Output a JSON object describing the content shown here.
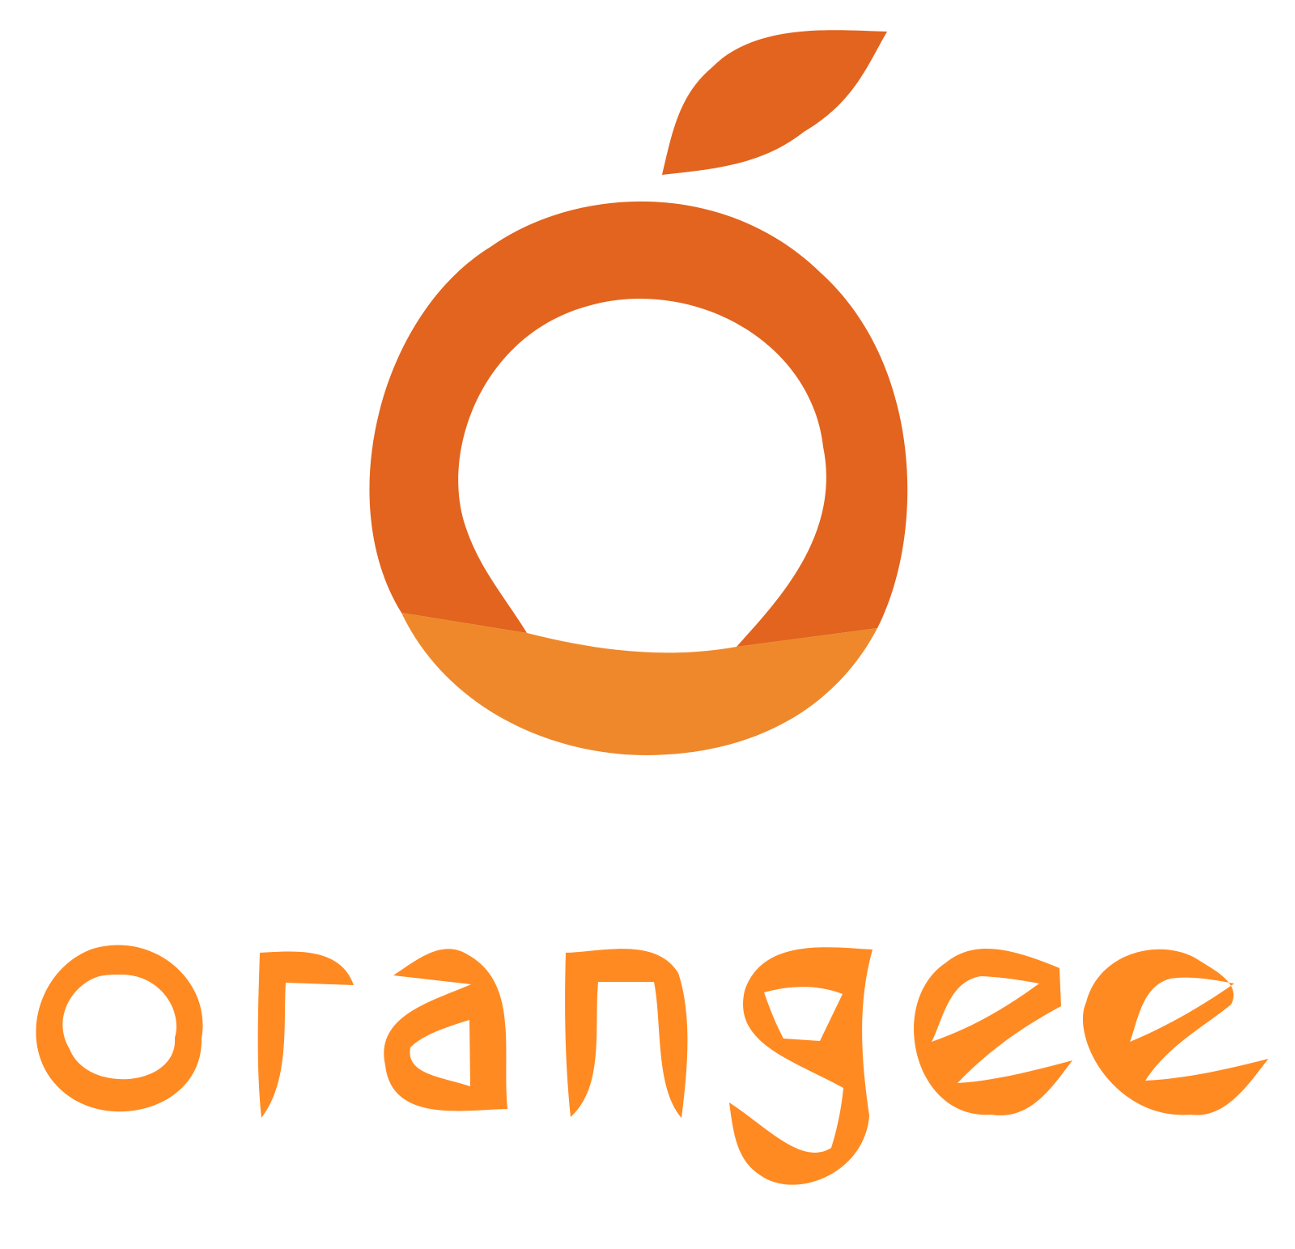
{
  "logo": {
    "wordmark": "orangee",
    "colors": {
      "fruit_ring": "#E2641E",
      "leaf": "#E2641E",
      "fruit_bottom": "#EE882B",
      "wordmark": "#FF8A22",
      "background": "#FFFFFF"
    },
    "icons": [
      "orange-fruit-icon",
      "leaf-icon"
    ]
  }
}
